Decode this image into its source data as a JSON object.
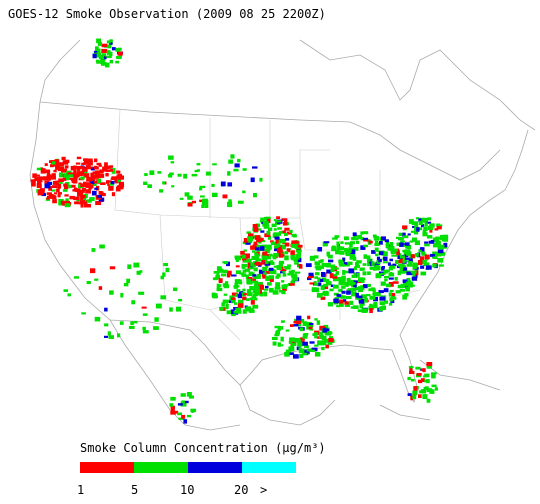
{
  "title": "GOES-12 Smoke Observation (2009 08 25  2200Z)",
  "legend": {
    "label": "Smoke Column Concentration (μg/m³)",
    "colors": [
      "#ff0000",
      "#00e000",
      "#0000dd",
      "#00ffff"
    ],
    "ticks": [
      "1",
      "5",
      "10",
      "20",
      ">"
    ]
  }
}
